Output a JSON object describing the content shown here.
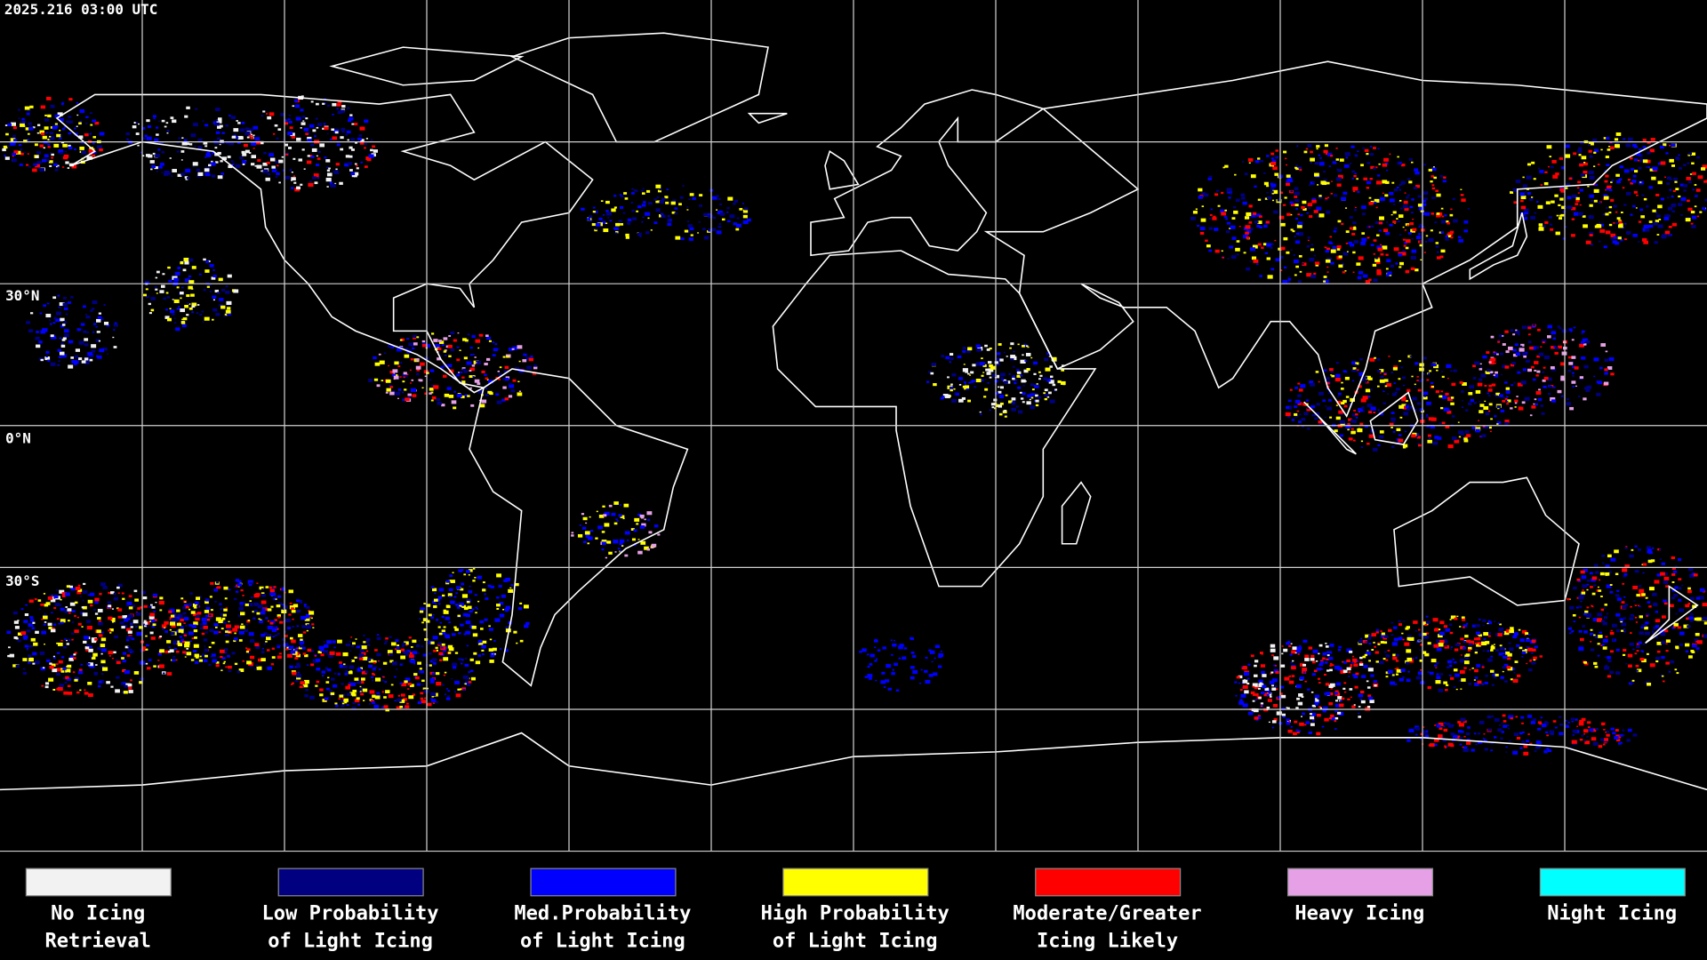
{
  "timestamp": "2025.216 03:00 UTC",
  "latitude_labels": [
    "30°N",
    "0°N",
    "30°S"
  ],
  "legend": [
    {
      "lines": [
        "No Icing",
        "Retrieval"
      ],
      "color": "#f2f2f2"
    },
    {
      "lines": [
        "Low Probability",
        "of Light Icing"
      ],
      "color": "#000080"
    },
    {
      "lines": [
        "Med.Probability",
        "of Light Icing"
      ],
      "color": "#0000ff"
    },
    {
      "lines": [
        "High Probability",
        "of Light Icing"
      ],
      "color": "#ffff00"
    },
    {
      "lines": [
        "Moderate/Greater",
        "Icing Likely"
      ],
      "color": "#ff0000"
    },
    {
      "lines": [
        "Heavy Icing"
      ],
      "color": "#e6a0e6"
    },
    {
      "lines": [
        "Night Icing"
      ],
      "color": "#00ffff"
    }
  ]
}
